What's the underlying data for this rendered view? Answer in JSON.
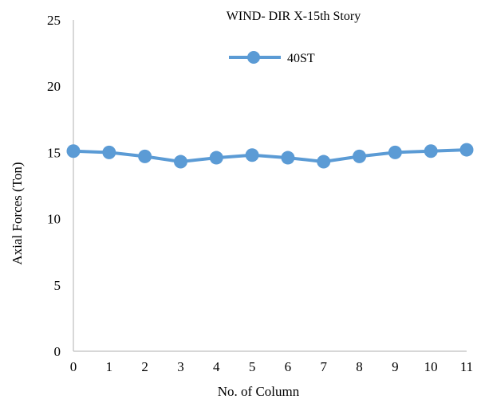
{
  "chart_data": {
    "type": "line",
    "title": "WIND- DIR X-15th Story",
    "xlabel": "No. of Column",
    "ylabel": "Axial Forces (Ton)",
    "ylim": [
      0,
      25
    ],
    "yticks": [
      "0",
      "5",
      "10",
      "15",
      "20",
      "25"
    ],
    "xticks": [
      "0",
      "1",
      "2",
      "3",
      "4",
      "5",
      "6",
      "7",
      "8",
      "9",
      "10",
      "11"
    ],
    "grid": false,
    "legend_position": "top-center",
    "series": [
      {
        "name": "40ST",
        "color": "#5b9bd5",
        "x": [
          0,
          1,
          2,
          3,
          4,
          5,
          6,
          7,
          8,
          9,
          10,
          11
        ],
        "values": [
          15.1,
          15.0,
          14.7,
          14.3,
          14.6,
          14.8,
          14.6,
          14.3,
          14.7,
          15.0,
          15.1,
          15.2
        ]
      }
    ]
  }
}
